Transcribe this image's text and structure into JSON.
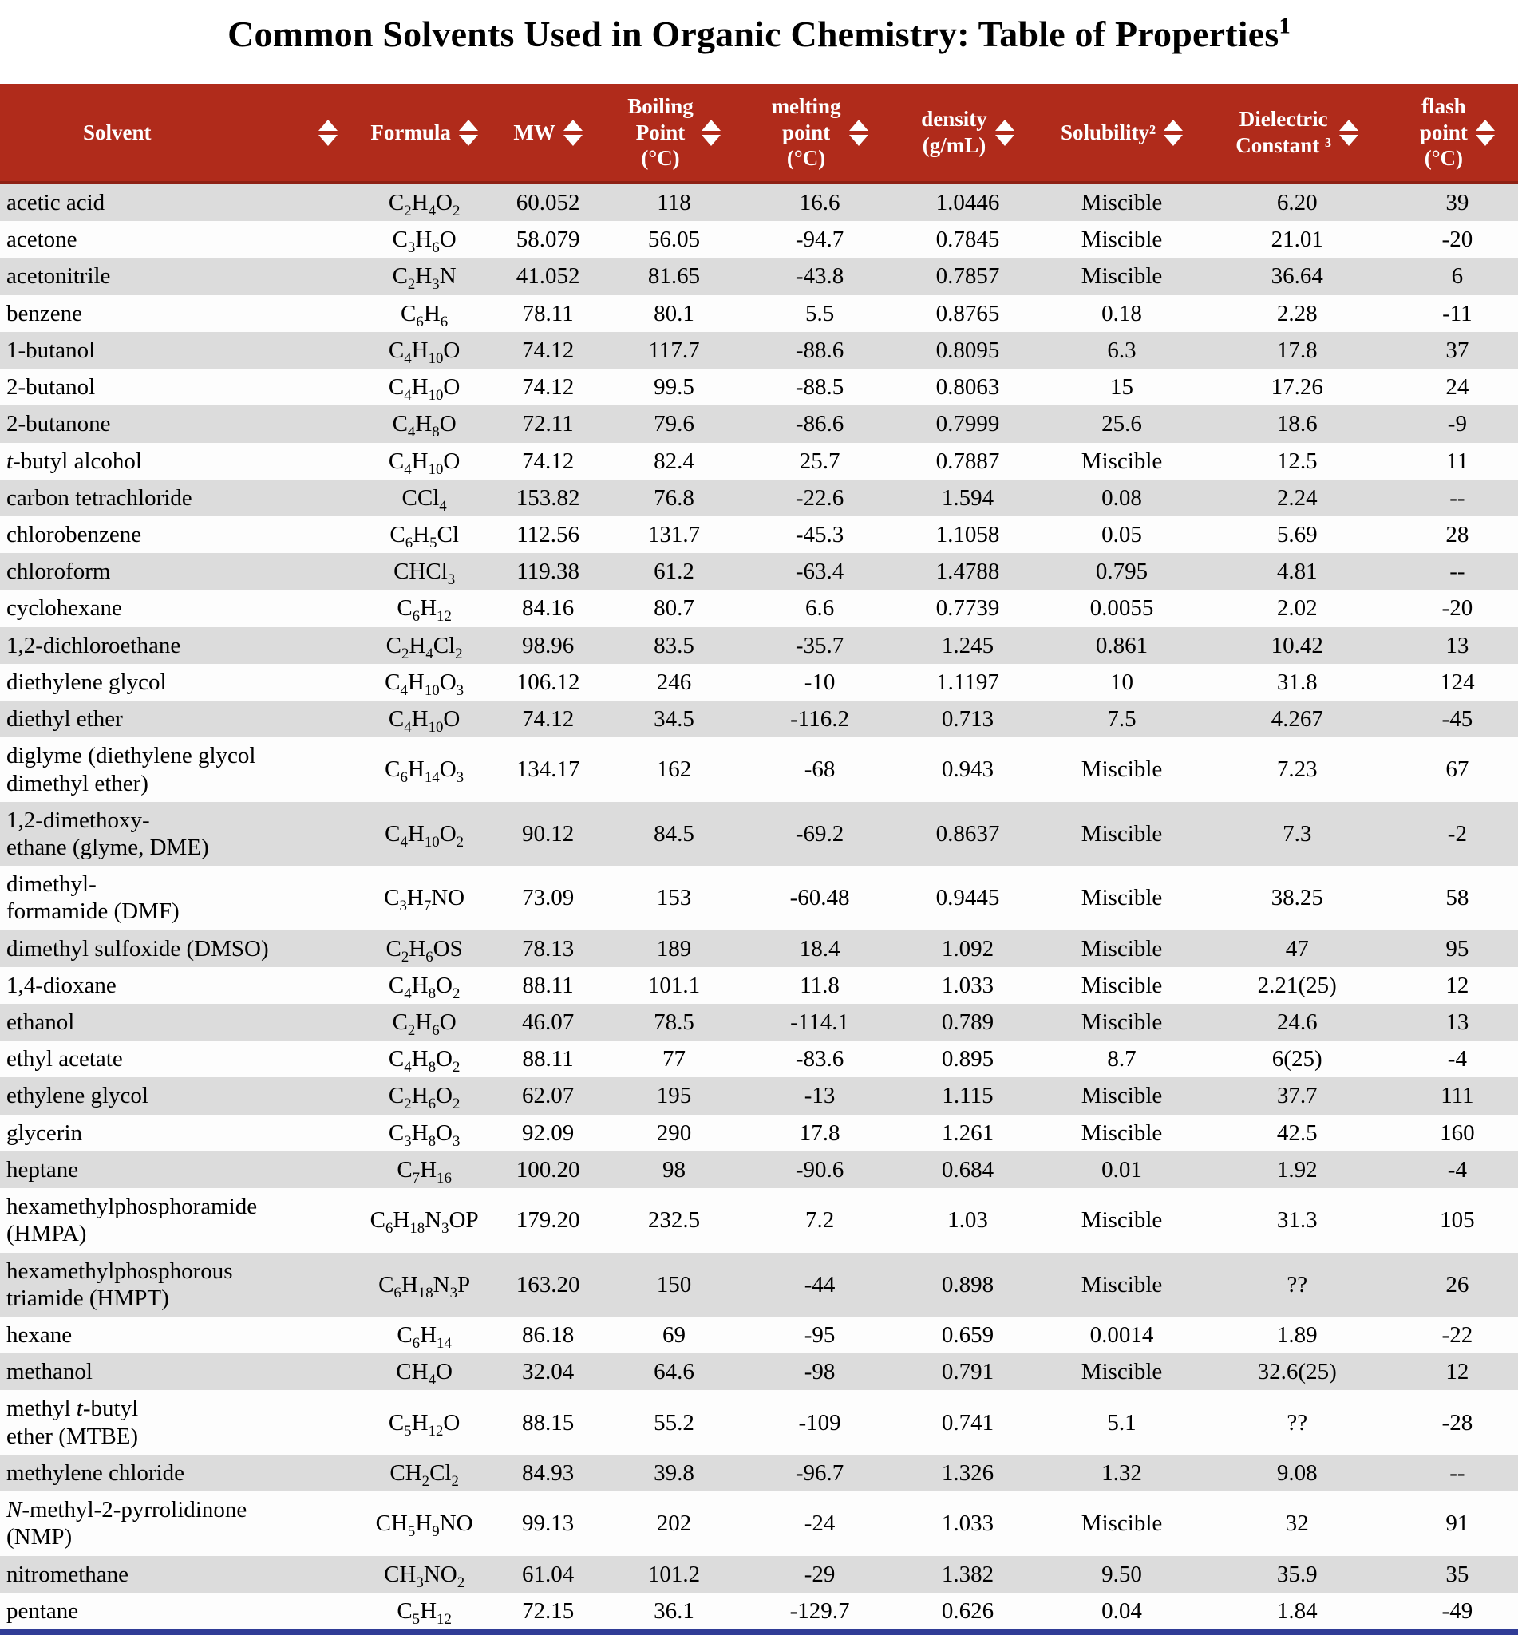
{
  "page": {
    "title": "Common Solvents Used in Organic Chemistry: Table of Properties",
    "title_superscript": "1"
  },
  "colors": {
    "header_bg": "#B02B1B",
    "header_border": "#8E2114",
    "row_alt_bg": "#DCDCDC",
    "row_bg": "#FDFDFD",
    "footer_bar": "#303C96"
  },
  "icons": {
    "sort": "sort-arrows"
  },
  "table": {
    "columns": [
      {
        "label": "Solvent"
      },
      {
        "label": "Formula"
      },
      {
        "label": "MW"
      },
      {
        "label": "Boiling\nPoint\n(°C)"
      },
      {
        "label": "melting\npoint\n(°C)"
      },
      {
        "label": "density\n(g/mL)"
      },
      {
        "label": "Solubility²"
      },
      {
        "label": "Dielectric\nConstant ³"
      },
      {
        "label": "flash\npoint\n(°C)"
      }
    ],
    "rows": [
      {
        "solvent": "acetic acid",
        "formula": "C2H4O2",
        "mw": "60.052",
        "bp": "118",
        "mp": "16.6",
        "density": "1.0446",
        "solubility": "Miscible",
        "dielectric": "6.20",
        "flash": "39"
      },
      {
        "solvent": "acetone",
        "formula": "C3H6O",
        "mw": "58.079",
        "bp": "56.05",
        "mp": "-94.7",
        "density": "0.7845",
        "solubility": "Miscible",
        "dielectric": "21.01",
        "flash": "-20"
      },
      {
        "solvent": "acetonitrile",
        "formula": "C2H3N",
        "mw": "41.052",
        "bp": "81.65",
        "mp": "-43.8",
        "density": "0.7857",
        "solubility": "Miscible",
        "dielectric": "36.64",
        "flash": "6"
      },
      {
        "solvent": "benzene",
        "formula": "C6H6",
        "mw": "78.11",
        "bp": "80.1",
        "mp": "5.5",
        "density": "0.8765",
        "solubility": "0.18",
        "dielectric": "2.28",
        "flash": "-11"
      },
      {
        "solvent": "1-butanol",
        "formula": "C4H10O",
        "mw": "74.12",
        "bp": "117.7",
        "mp": "-88.6",
        "density": "0.8095",
        "solubility": "6.3",
        "dielectric": "17.8",
        "flash": "37"
      },
      {
        "solvent": "2-butanol",
        "formula": "C4H10O",
        "mw": "74.12",
        "bp": "99.5",
        "mp": "-88.5",
        "density": "0.8063",
        "solubility": "15",
        "dielectric": "17.26",
        "flash": "24"
      },
      {
        "solvent": "2-butanone",
        "formula": "C4H8O",
        "mw": "72.11",
        "bp": "79.6",
        "mp": "-86.6",
        "density": "0.7999",
        "solubility": "25.6",
        "dielectric": "18.6",
        "flash": "-9"
      },
      {
        "solvent": "*t*-butyl alcohol",
        "formula": "C4H10O",
        "mw": "74.12",
        "bp": "82.4",
        "mp": "25.7",
        "density": "0.7887",
        "solubility": "Miscible",
        "dielectric": "12.5",
        "flash": "11"
      },
      {
        "solvent": "carbon tetrachloride",
        "formula": "CCl4",
        "mw": "153.82",
        "bp": "76.8",
        "mp": "-22.6",
        "density": "1.594",
        "solubility": "0.08",
        "dielectric": "2.24",
        "flash": "--"
      },
      {
        "solvent": "chlorobenzene",
        "formula": "C6H5Cl",
        "mw": "112.56",
        "bp": "131.7",
        "mp": "-45.3",
        "density": "1.1058",
        "solubility": "0.05",
        "dielectric": "5.69",
        "flash": "28"
      },
      {
        "solvent": "chloroform",
        "formula": "CHCl3",
        "mw": "119.38",
        "bp": "61.2",
        "mp": "-63.4",
        "density": "1.4788",
        "solubility": "0.795",
        "dielectric": "4.81",
        "flash": "--"
      },
      {
        "solvent": "cyclohexane",
        "formula": "C6H12",
        "mw": "84.16",
        "bp": "80.7",
        "mp": "6.6",
        "density": "0.7739",
        "solubility": "0.0055",
        "dielectric": "2.02",
        "flash": "-20"
      },
      {
        "solvent": "1,2-dichloroethane",
        "formula": "C2H4Cl2",
        "mw": "98.96",
        "bp": "83.5",
        "mp": "-35.7",
        "density": "1.245",
        "solubility": "0.861",
        "dielectric": "10.42",
        "flash": "13"
      },
      {
        "solvent": "diethylene glycol",
        "formula": "C4H10O3",
        "mw": "106.12",
        "bp": "246",
        "mp": "-10",
        "density": "1.1197",
        "solubility": "10",
        "dielectric": "31.8",
        "flash": "124"
      },
      {
        "solvent": "diethyl ether",
        "formula": "C4H10O",
        "mw": "74.12",
        "bp": "34.5",
        "mp": "-116.2",
        "density": "0.713",
        "solubility": "7.5",
        "dielectric": "4.267",
        "flash": "-45"
      },
      {
        "solvent": "diglyme (diethylene glycol\ndimethyl ether)",
        "formula": "C6H14O3",
        "mw": "134.17",
        "bp": "162",
        "mp": "-68",
        "density": "0.943",
        "solubility": "Miscible",
        "dielectric": "7.23",
        "flash": "67"
      },
      {
        "solvent": "1,2-dimethoxy-\nethane (glyme, DME)",
        "formula": "C4H10O2",
        "mw": "90.12",
        "bp": "84.5",
        "mp": "-69.2",
        "density": "0.8637",
        "solubility": "Miscible",
        "dielectric": "7.3",
        "flash": "-2"
      },
      {
        "solvent": "dimethyl-\nformamide (DMF)",
        "formula": "C3H7NO",
        "mw": "73.09",
        "bp": "153",
        "mp": "-60.48",
        "density": "0.9445",
        "solubility": "Miscible",
        "dielectric": "38.25",
        "flash": "58"
      },
      {
        "solvent": "dimethyl sulfoxide (DMSO)",
        "formula": "C2H6OS",
        "mw": "78.13",
        "bp": "189",
        "mp": "18.4",
        "density": "1.092",
        "solubility": "Miscible",
        "dielectric": "47",
        "flash": "95"
      },
      {
        "solvent": "1,4-dioxane",
        "formula": "C4H8O2",
        "mw": "88.11",
        "bp": "101.1",
        "mp": "11.8",
        "density": "1.033",
        "solubility": "Miscible",
        "dielectric": "2.21(25)",
        "flash": "12"
      },
      {
        "solvent": "ethanol",
        "formula": "C2H6O",
        "mw": "46.07",
        "bp": "78.5",
        "mp": "-114.1",
        "density": "0.789",
        "solubility": "Miscible",
        "dielectric": "24.6",
        "flash": "13"
      },
      {
        "solvent": "ethyl acetate",
        "formula": "C4H8O2",
        "mw": "88.11",
        "bp": "77",
        "mp": "-83.6",
        "density": "0.895",
        "solubility": "8.7",
        "dielectric": "6(25)",
        "flash": "-4"
      },
      {
        "solvent": "ethylene glycol",
        "formula": "C2H6O2",
        "mw": "62.07",
        "bp": "195",
        "mp": "-13",
        "density": "1.115",
        "solubility": "Miscible",
        "dielectric": "37.7",
        "flash": "111"
      },
      {
        "solvent": "glycerin",
        "formula": "C3H8O3",
        "mw": "92.09",
        "bp": "290",
        "mp": "17.8",
        "density": "1.261",
        "solubility": "Miscible",
        "dielectric": "42.5",
        "flash": "160"
      },
      {
        "solvent": "heptane",
        "formula": "C7H16",
        "mw": "100.20",
        "bp": "98",
        "mp": "-90.6",
        "density": "0.684",
        "solubility": "0.01",
        "dielectric": "1.92",
        "flash": "-4"
      },
      {
        "solvent": "hexamethylphosphoramide\n(HMPA)",
        "formula": "C6H18N3OP",
        "mw": "179.20",
        "bp": "232.5",
        "mp": "7.2",
        "density": "1.03",
        "solubility": "Miscible",
        "dielectric": "31.3",
        "flash": "105"
      },
      {
        "solvent": "hexamethylphosphorous\ntriamide (HMPT)",
        "formula": "C6H18N3P",
        "mw": "163.20",
        "bp": "150",
        "mp": "-44",
        "density": "0.898",
        "solubility": "Miscible",
        "dielectric": "??",
        "flash": "26"
      },
      {
        "solvent": "hexane",
        "formula": "C6H14",
        "mw": "86.18",
        "bp": "69",
        "mp": "-95",
        "density": "0.659",
        "solubility": "0.0014",
        "dielectric": "1.89",
        "flash": "-22"
      },
      {
        "solvent": "methanol",
        "formula": "CH4O",
        "mw": "32.04",
        "bp": "64.6",
        "mp": "-98",
        "density": "0.791",
        "solubility": "Miscible",
        "dielectric": "32.6(25)",
        "flash": "12"
      },
      {
        "solvent": "methyl *t*-butyl\nether (MTBE)",
        "formula": "C5H12O",
        "mw": "88.15",
        "bp": "55.2",
        "mp": "-109",
        "density": "0.741",
        "solubility": "5.1",
        "dielectric": "??",
        "flash": "-28"
      },
      {
        "solvent": "methylene chloride",
        "formula": "CH2Cl2",
        "mw": "84.93",
        "bp": "39.8",
        "mp": "-96.7",
        "density": "1.326",
        "solubility": "1.32",
        "dielectric": "9.08",
        "flash": "--"
      },
      {
        "solvent": "*N*-methyl-2-pyrrolidinone\n(NMP)",
        "formula": "CH5H9NO",
        "mw": "99.13",
        "bp": "202",
        "mp": "-24",
        "density": "1.033",
        "solubility": "Miscible",
        "dielectric": "32",
        "flash": "91"
      },
      {
        "solvent": "nitromethane",
        "formula": "CH3NO2",
        "mw": "61.04",
        "bp": "101.2",
        "mp": "-29",
        "density": "1.382",
        "solubility": "9.50",
        "dielectric": "35.9",
        "flash": "35"
      },
      {
        "solvent": "pentane",
        "formula": "C5H12",
        "mw": "72.15",
        "bp": "36.1",
        "mp": "-129.7",
        "density": "0.626",
        "solubility": "0.04",
        "dielectric": "1.84",
        "flash": "-49"
      }
    ]
  }
}
